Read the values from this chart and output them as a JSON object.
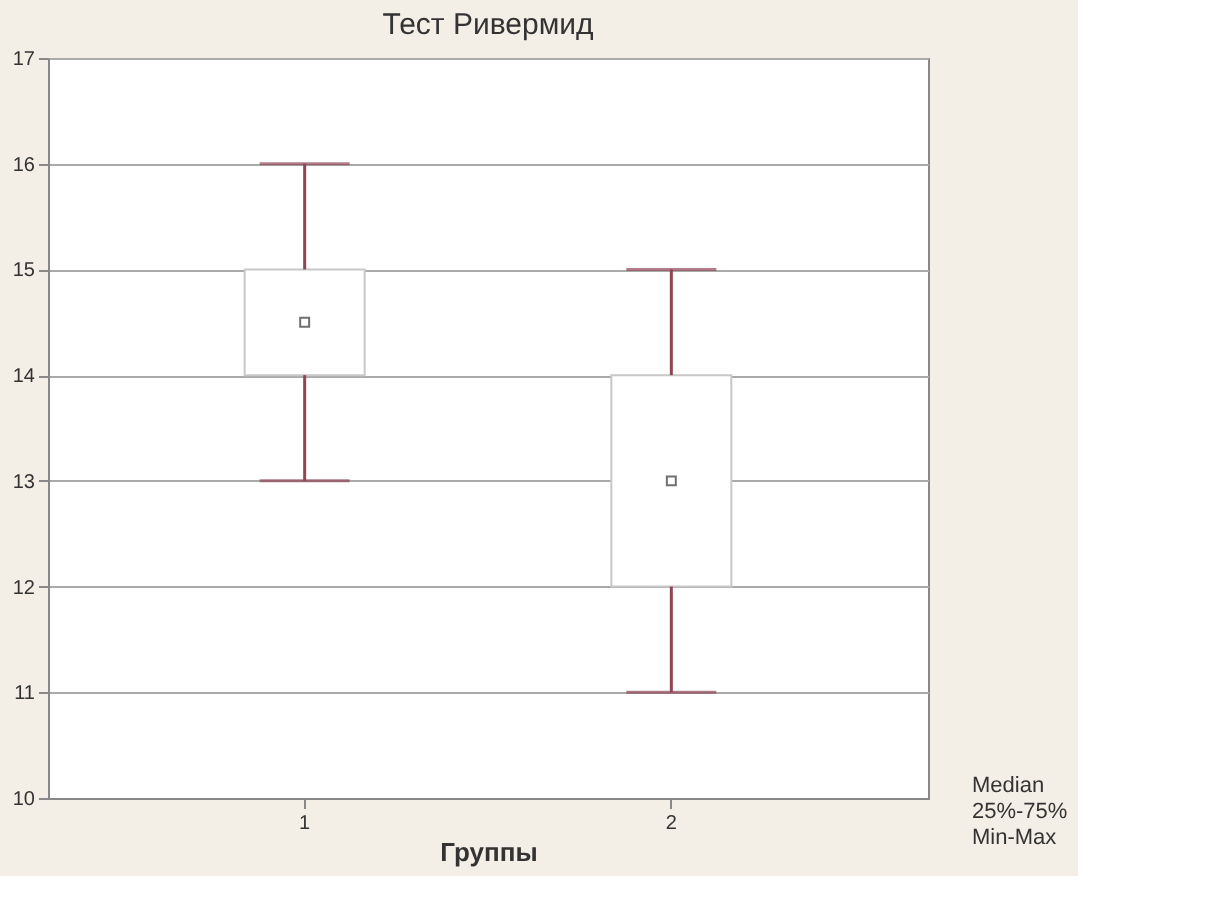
{
  "chart_data": {
    "type": "box",
    "title": "Тест Ривермид",
    "xlabel": "Группы",
    "categories": [
      "1",
      "2"
    ],
    "boxes": [
      {
        "low": 13,
        "q1": 14,
        "median": 14.5,
        "q3": 15,
        "high": 16
      },
      {
        "low": 11,
        "q1": 12,
        "median": 13,
        "q3": 14,
        "high": 15
      }
    ],
    "ylim": [
      10,
      17
    ],
    "yticks": [
      10,
      11,
      12,
      13,
      14,
      15,
      16,
      17
    ],
    "grid": "y",
    "annotations": [
      "Median",
      "25%-75%",
      "Min-Max"
    ]
  }
}
